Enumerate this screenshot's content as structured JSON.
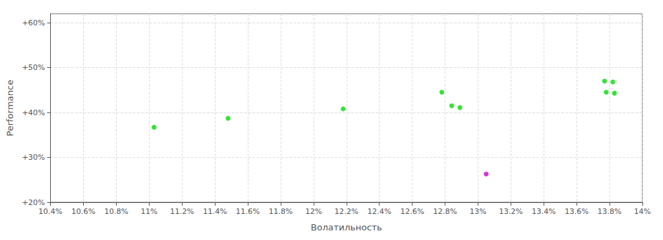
{
  "chart_data": {
    "type": "scatter",
    "xlabel": "Волатильность",
    "ylabel": "Performance",
    "xlim": [
      0.104,
      0.14
    ],
    "ylim": [
      0.2,
      0.62
    ],
    "xticks": [
      {
        "value": 0.104,
        "label": "10.4%"
      },
      {
        "value": 0.106,
        "label": "10.6%"
      },
      {
        "value": 0.108,
        "label": "10.8%"
      },
      {
        "value": 0.11,
        "label": "11%"
      },
      {
        "value": 0.112,
        "label": "11.2%"
      },
      {
        "value": 0.114,
        "label": "11.4%"
      },
      {
        "value": 0.116,
        "label": "11.6%"
      },
      {
        "value": 0.118,
        "label": "11.8%"
      },
      {
        "value": 0.12,
        "label": "12%"
      },
      {
        "value": 0.122,
        "label": "12.2%"
      },
      {
        "value": 0.124,
        "label": "12.4%"
      },
      {
        "value": 0.126,
        "label": "12.6%"
      },
      {
        "value": 0.128,
        "label": "12.8%"
      },
      {
        "value": 0.13,
        "label": "13%"
      },
      {
        "value": 0.132,
        "label": "13.2%"
      },
      {
        "value": 0.134,
        "label": "13.4%"
      },
      {
        "value": 0.136,
        "label": "13.6%"
      },
      {
        "value": 0.138,
        "label": "13.8%"
      },
      {
        "value": 0.14,
        "label": "14%"
      }
    ],
    "yticks": [
      {
        "value": 0.2,
        "label": "+20%"
      },
      {
        "value": 0.3,
        "label": "+30%"
      },
      {
        "value": 0.4,
        "label": "+40%"
      },
      {
        "value": 0.5,
        "label": "+50%"
      },
      {
        "value": 0.6,
        "label": "+60%"
      }
    ],
    "grid": true,
    "series": [
      {
        "color": "#00dd00",
        "x": [
          0.1103,
          0.1148,
          0.1218,
          0.1278,
          0.1284,
          0.1289,
          0.1378,
          0.1383,
          0.1377,
          0.1382
        ],
        "values": [
          0.367,
          0.387,
          0.408,
          0.445,
          0.415,
          0.411,
          0.445,
          0.443,
          0.47,
          0.468
        ]
      },
      {
        "color": "#cc00cc",
        "x": [
          0.1305
        ],
        "values": [
          0.263
        ]
      }
    ]
  }
}
